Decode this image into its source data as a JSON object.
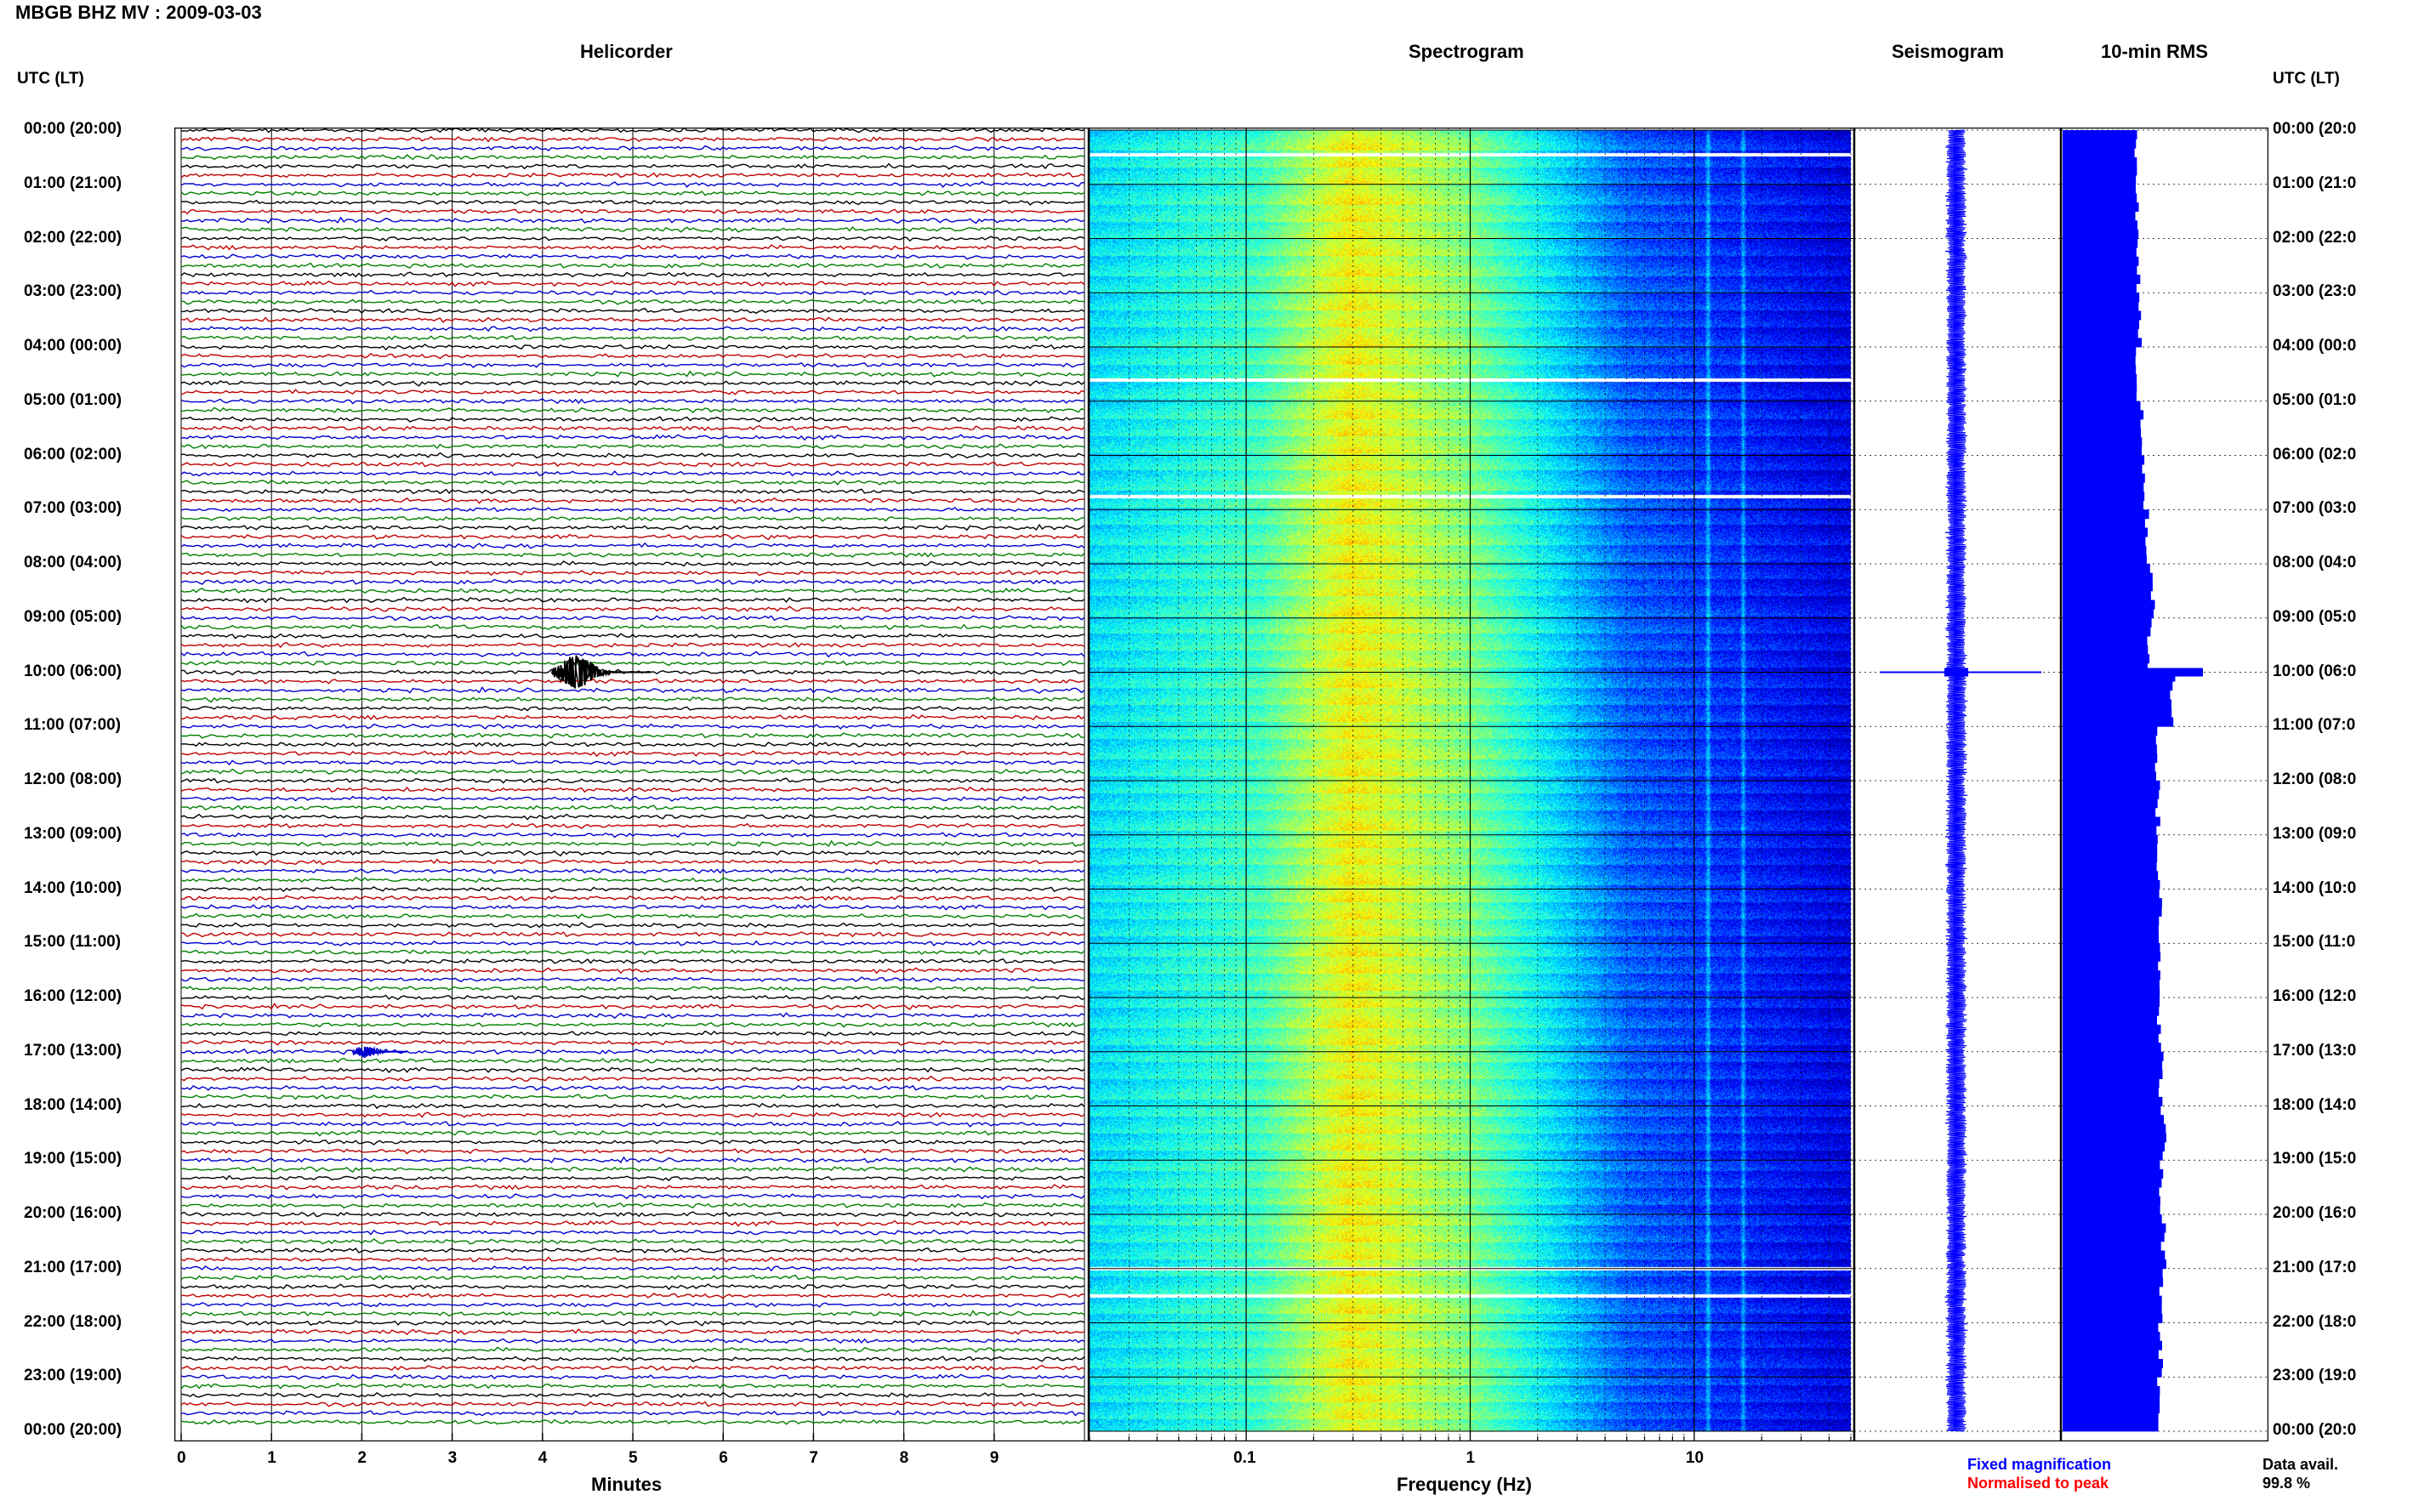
{
  "header": {
    "station_title": "MBGB BHZ MV : 2009-03-03"
  },
  "panels": {
    "helicorder": "Helicorder",
    "spectrogram": "Spectrogram",
    "seismogram": "Seismogram",
    "rms": "10-min RMS"
  },
  "time_axis": {
    "label_left": "UTC (LT)",
    "label_right": "UTC (LT)",
    "rows": [
      "00:00 (20:00)",
      "01:00 (21:00)",
      "02:00 (22:00)",
      "03:00 (23:00)",
      "04:00 (00:00)",
      "05:00 (01:00)",
      "06:00 (02:00)",
      "07:00 (03:00)",
      "08:00 (04:00)",
      "09:00 (05:00)",
      "10:00 (06:00)",
      "11:00 (07:00)",
      "12:00 (08:00)",
      "13:00 (09:00)",
      "14:00 (10:00)",
      "15:00 (11:00)",
      "16:00 (12:00)",
      "17:00 (13:00)",
      "18:00 (14:00)",
      "19:00 (15:00)",
      "20:00 (16:00)",
      "21:00 (17:00)",
      "22:00 (18:00)",
      "23:00 (19:00)",
      "00:00 (20:00)"
    ],
    "rows_right": [
      "00:00 (20:0",
      "01:00 (21:0",
      "02:00 (22:0",
      "03:00 (23:0",
      "04:00 (00:0",
      "05:00 (01:0",
      "06:00 (02:0",
      "07:00 (03:0",
      "08:00 (04:0",
      "09:00 (05:0",
      "10:00 (06:0",
      "11:00 (07:0",
      "12:00 (08:0",
      "13:00 (09:0",
      "14:00 (10:0",
      "15:00 (11:0",
      "16:00 (12:0",
      "17:00 (13:0",
      "18:00 (14:0",
      "19:00 (15:0",
      "20:00 (16:0",
      "21:00 (17:0",
      "22:00 (18:0",
      "23:00 (19:0",
      "00:00 (20:0"
    ]
  },
  "footer": {
    "fixed_magnification": "Fixed magnification",
    "normalised_to_peak": "Normalised to peak",
    "data_avail_label": "Data avail.",
    "data_avail_value": "99.8 %"
  },
  "colors": {
    "trace_cycle": [
      "#000000",
      "#c00000",
      "#0000d0",
      "#008000"
    ],
    "fixed_magnification": "#0000ff",
    "normalised_to_peak": "#ff0000",
    "rms_bars": "#0000ff",
    "seismogram": "#0000ff"
  },
  "chart_data": [
    {
      "type": "line",
      "name": "helicorder",
      "xlabel": "Minutes",
      "x_ticks": [
        "0",
        "1",
        "2",
        "3",
        "4",
        "5",
        "6",
        "7",
        "8",
        "9"
      ],
      "xlim": [
        0,
        10
      ],
      "lines_per_hour": 6,
      "hours": 24,
      "events": [
        {
          "hour": 10,
          "line": 0,
          "start_min": 4.1,
          "end_min": 5.2,
          "amplitude": 4.5,
          "color": "#000000"
        },
        {
          "hour": 17,
          "line": 0,
          "start_min": 1.9,
          "end_min": 2.5,
          "amplitude": 1.4,
          "color": "#0000d0"
        }
      ]
    },
    {
      "type": "heatmap",
      "name": "spectrogram",
      "xlabel": "Frequency (Hz)",
      "x_scale": "log",
      "x_ticks": [
        "0.1",
        "1",
        "10"
      ],
      "xlim": [
        0.02,
        50
      ],
      "ylim_hours": [
        0,
        24
      ],
      "gap_hours": [
        0.45,
        4.6,
        6.75,
        21.0,
        21.5
      ],
      "peak_frequency_band_hz": [
        0.2,
        0.5
      ],
      "spectral_lines_hz": [
        11.5,
        16.5
      ]
    },
    {
      "type": "line",
      "name": "seismogram",
      "spike_hours": [
        10.0
      ],
      "amplitude_relative": 1.0
    },
    {
      "type": "bar",
      "name": "10-min RMS",
      "bins_per_hour": 6,
      "hourly_level": [
        0.52,
        0.53,
        0.54,
        0.55,
        0.53,
        0.56,
        0.58,
        0.6,
        0.64,
        0.62,
        0.78,
        0.66,
        0.68,
        0.68,
        0.7,
        0.7,
        0.69,
        0.7,
        0.72,
        0.7,
        0.72,
        0.71,
        0.7,
        0.69
      ],
      "spike": {
        "hour": 10.0,
        "value": 1.0
      }
    }
  ]
}
